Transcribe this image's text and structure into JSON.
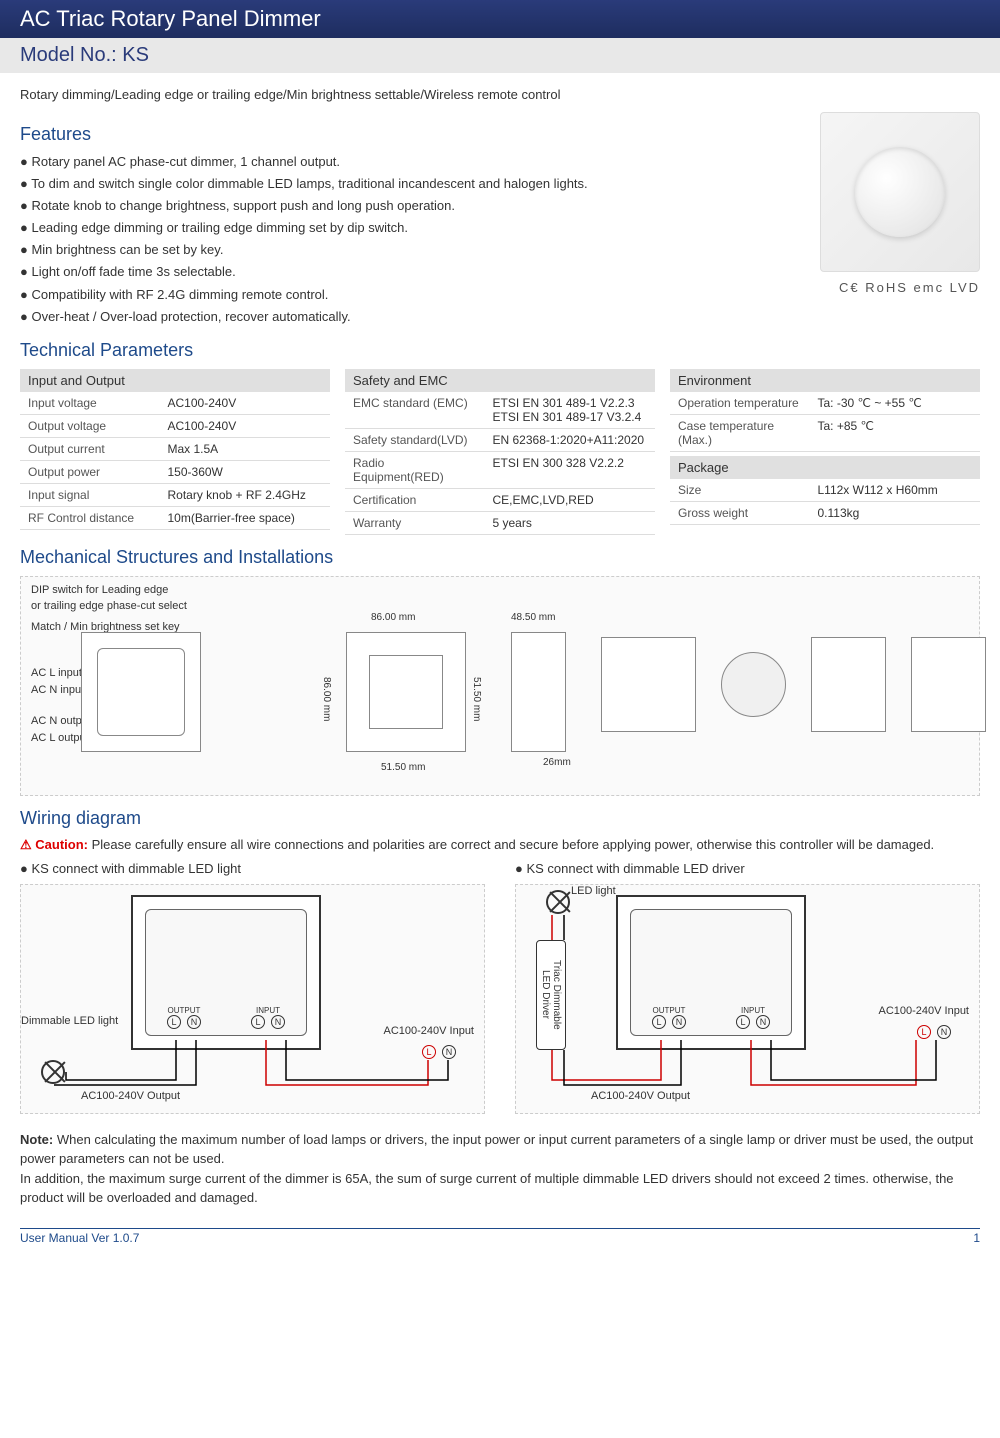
{
  "header": {
    "title": "AC Triac Rotary Panel Dimmer",
    "model_label": "Model No.: KS",
    "subtitle": "Rotary dimming/Leading edge or trailing edge/Min brightness settable/Wireless remote control"
  },
  "colors": {
    "header_bg": "#1e2d5f",
    "heading_text": "#1e4a8a",
    "param_head_bg": "#e0e0e0"
  },
  "features": {
    "heading": "Features",
    "items": [
      "Rotary panel AC phase-cut dimmer, 1 channel output.",
      "To dim and switch single color dimmable LED lamps, traditional incandescent and halogen lights.",
      "Rotate knob to change brightness, support push and long push operation.",
      "Leading edge dimming or trailing edge dimming set by dip switch.",
      "Min brightness can be set by key.",
      "Light on/off fade time 3s selectable.",
      "Compatibility with RF 2.4G dimming remote control.",
      "Over-heat / Over-load protection, recover automatically."
    ],
    "certs": "C€  RoHS  emc  LVD"
  },
  "params": {
    "heading": "Technical Parameters",
    "col1": {
      "head": "Input and Output",
      "rows": [
        [
          "Input voltage",
          "AC100-240V"
        ],
        [
          "Output voltage",
          "AC100-240V"
        ],
        [
          "Output current",
          "Max 1.5A"
        ],
        [
          "Output power",
          "150-360W"
        ],
        [
          "Input signal",
          "Rotary knob + RF 2.4GHz"
        ],
        [
          "RF Control distance",
          "10m(Barrier-free space)"
        ]
      ]
    },
    "col2": {
      "head": "Safety and EMC",
      "rows": [
        [
          "EMC standard (EMC)",
          "ETSI EN 301 489-1 V2.2.3\nETSI EN 301 489-17 V3.2.4"
        ],
        [
          "Safety standard(LVD)",
          "EN 62368-1:2020+A11:2020"
        ],
        [
          "Radio Equipment(RED)",
          "ETSI EN 300 328 V2.2.2"
        ],
        [
          "Certification",
          "CE,EMC,LVD,RED"
        ],
        [
          "Warranty",
          "5 years"
        ]
      ]
    },
    "col3a": {
      "head": "Environment",
      "rows": [
        [
          "Operation temperature",
          "Ta: -30 ℃ ~ +55 ℃"
        ],
        [
          "Case temperature (Max.)",
          "Ta: +85 ℃"
        ]
      ]
    },
    "col3b": {
      "head": "Package",
      "rows": [
        [
          "Size",
          "L112x W112 x H60mm"
        ],
        [
          "Gross weight",
          "0.113kg"
        ]
      ]
    }
  },
  "mech": {
    "heading": "Mechanical Structures and Installations",
    "labels": {
      "dip": "DIP switch for Leading edge\nor trailing edge phase-cut select",
      "match": "Match / Min brightness set key",
      "acl_in": "AC L input",
      "acn_in": "AC N input",
      "acn_out": "AC N output",
      "acl_out": "AC L output"
    },
    "dims": {
      "w86": "86.00 mm",
      "h86": "86.00 mm",
      "w515": "51.50 mm",
      "h515": "51.50 mm",
      "w485": "48.50 mm",
      "d26": "26mm"
    }
  },
  "wiring": {
    "heading": "Wiring diagram",
    "caution_label": "⚠ Caution:",
    "caution_text": "Please carefully ensure all wire connections and polarities are correct and secure before applying power, otherwise this controller will be damaged.",
    "left_title": "KS connect with dimmable LED light",
    "right_title": "KS connect with dimmable LED driver",
    "labels": {
      "led_light": "LED light",
      "dimmable_led": "Dimmable LED light",
      "ac_input": "AC100-240V Input",
      "ac_output": "AC100-240V Output",
      "driver": "Triac Dimmable\nLED Driver",
      "output": "OUTPUT",
      "input": "INPUT",
      "L": "L",
      "N": "N"
    }
  },
  "note": {
    "label": "Note:",
    "text": "When calculating the maximum number of load lamps or drivers, the input power or input current parameters of a single lamp or driver must be used, the output power parameters can not be used.\nIn addition, the maximum surge current of the dimmer is 65A, the sum of surge current of multiple dimmable LED drivers should not exceed 2 times. otherwise, the product will be overloaded and damaged."
  },
  "footer": {
    "ver": "User Manual Ver 1.0.7",
    "page": "1"
  }
}
